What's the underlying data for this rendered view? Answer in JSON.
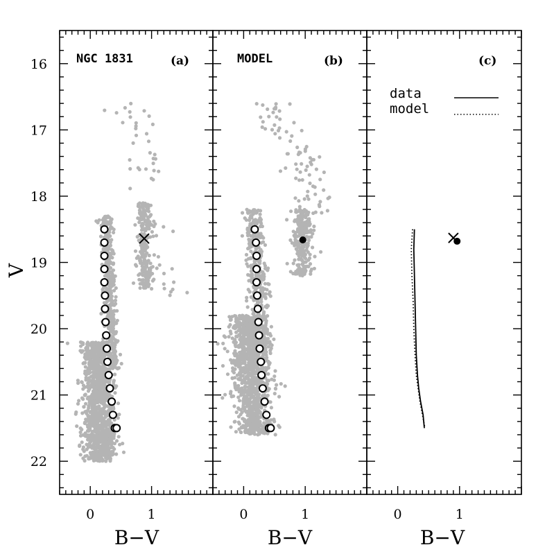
{
  "chart_data": [
    {
      "type": "scatter",
      "panel": "a",
      "label": "NGC 1831",
      "tag": "(a)",
      "xlabel": "B−V",
      "ylabel": "V",
      "xlim": [
        -0.5,
        2.0
      ],
      "ylim": [
        22.5,
        15.5
      ],
      "y_inverted": true,
      "xticks": [
        "0",
        "1"
      ],
      "yticks": [
        "16",
        "17",
        "18",
        "19",
        "20",
        "21",
        "22"
      ],
      "colors": {
        "points": "#b4b4b4",
        "markers": "#000000"
      },
      "series": [
        {
          "kind": "ridge-circles",
          "x": [
            0.23,
            0.23,
            0.23,
            0.23,
            0.23,
            0.24,
            0.24,
            0.25,
            0.26,
            0.27,
            0.28,
            0.3,
            0.32,
            0.35,
            0.37,
            0.4,
            0.43
          ],
          "y": [
            18.5,
            18.7,
            18.9,
            19.1,
            19.3,
            19.5,
            19.7,
            19.9,
            20.1,
            20.3,
            20.5,
            20.7,
            20.9,
            21.1,
            21.3,
            21.5,
            21.5
          ]
        },
        {
          "kind": "cross",
          "x": [
            0.88
          ],
          "y": [
            18.64
          ]
        }
      ],
      "clouds": [
        {
          "n": 1100,
          "xc": [
            0.08,
            0.18
          ],
          "yr": [
            20.2,
            22.0
          ],
          "sx": 0.13
        },
        {
          "n": 420,
          "xc": [
            0.26,
            0.36
          ],
          "yr": [
            18.3,
            20.6
          ],
          "sx": 0.05
        },
        {
          "n": 230,
          "xc": [
            0.88,
            0.88
          ],
          "yr": [
            18.1,
            19.4
          ],
          "sx": 0.06
        },
        {
          "n": 60,
          "xc": [
            0.7,
            1.2
          ],
          "yr": [
            16.6,
            19.5
          ],
          "sx": 0.2
        }
      ]
    },
    {
      "type": "scatter",
      "panel": "b",
      "label": "MODEL",
      "tag": "(b)",
      "xlabel": "B−V",
      "xlim": [
        -0.5,
        2.0
      ],
      "ylim": [
        22.5,
        15.5
      ],
      "y_inverted": true,
      "xticks": [
        "0",
        "1"
      ],
      "colors": {
        "points": "#b4b4b4",
        "markers": "#000000"
      },
      "series": [
        {
          "kind": "ridge-circles",
          "x": [
            0.18,
            0.2,
            0.21,
            0.21,
            0.21,
            0.22,
            0.23,
            0.24,
            0.25,
            0.26,
            0.28,
            0.29,
            0.31,
            0.34,
            0.37,
            0.41,
            0.44
          ],
          "y": [
            18.5,
            18.7,
            18.9,
            19.1,
            19.3,
            19.5,
            19.7,
            19.9,
            20.1,
            20.3,
            20.5,
            20.7,
            20.9,
            21.1,
            21.3,
            21.5,
            21.5
          ]
        },
        {
          "kind": "filled-dot",
          "x": [
            0.96
          ],
          "y": [
            18.66
          ]
        }
      ],
      "clouds": [
        {
          "n": 1100,
          "xc": [
            0.05,
            0.2
          ],
          "yr": [
            19.8,
            21.6
          ],
          "sx": 0.15
        },
        {
          "n": 450,
          "xc": [
            0.15,
            0.3
          ],
          "yr": [
            18.2,
            20.4
          ],
          "sx": 0.08
        },
        {
          "n": 260,
          "xc": [
            0.95,
            0.95
          ],
          "yr": [
            18.2,
            19.2
          ],
          "sx": 0.08
        },
        {
          "n": 80,
          "xc": [
            0.45,
            1.3
          ],
          "yr": [
            16.6,
            18.3
          ],
          "sx": 0.18
        }
      ]
    },
    {
      "type": "line",
      "panel": "c",
      "tag": "(c)",
      "xlabel": "B−V",
      "xlim": [
        -0.5,
        2.0
      ],
      "ylim": [
        22.5,
        15.5
      ],
      "y_inverted": true,
      "xticks": [
        "0",
        "1"
      ],
      "legend": {
        "placement": "top-right",
        "entries": [
          "data",
          "model"
        ]
      },
      "series": [
        {
          "name": "data",
          "style": "solid",
          "x": [
            0.27,
            0.26,
            0.27,
            0.28,
            0.29,
            0.3,
            0.32,
            0.34,
            0.37,
            0.41,
            0.43
          ],
          "y": [
            18.5,
            18.8,
            19.2,
            19.6,
            20.0,
            20.4,
            20.7,
            20.9,
            21.1,
            21.3,
            21.5
          ]
        },
        {
          "name": "model",
          "style": "dotted",
          "x": [
            0.24,
            0.22,
            0.23,
            0.25,
            0.26,
            0.28,
            0.3,
            0.33,
            0.36,
            0.4,
            0.44
          ],
          "y": [
            18.5,
            18.8,
            19.2,
            19.6,
            20.0,
            20.4,
            20.7,
            20.9,
            21.1,
            21.3,
            21.5
          ]
        },
        {
          "name": "data-centroid",
          "kind": "cross",
          "x": [
            0.9
          ],
          "y": [
            18.63
          ]
        },
        {
          "name": "model-centroid",
          "kind": "filled-dot",
          "x": [
            0.96
          ],
          "y": [
            18.68
          ]
        }
      ]
    }
  ]
}
